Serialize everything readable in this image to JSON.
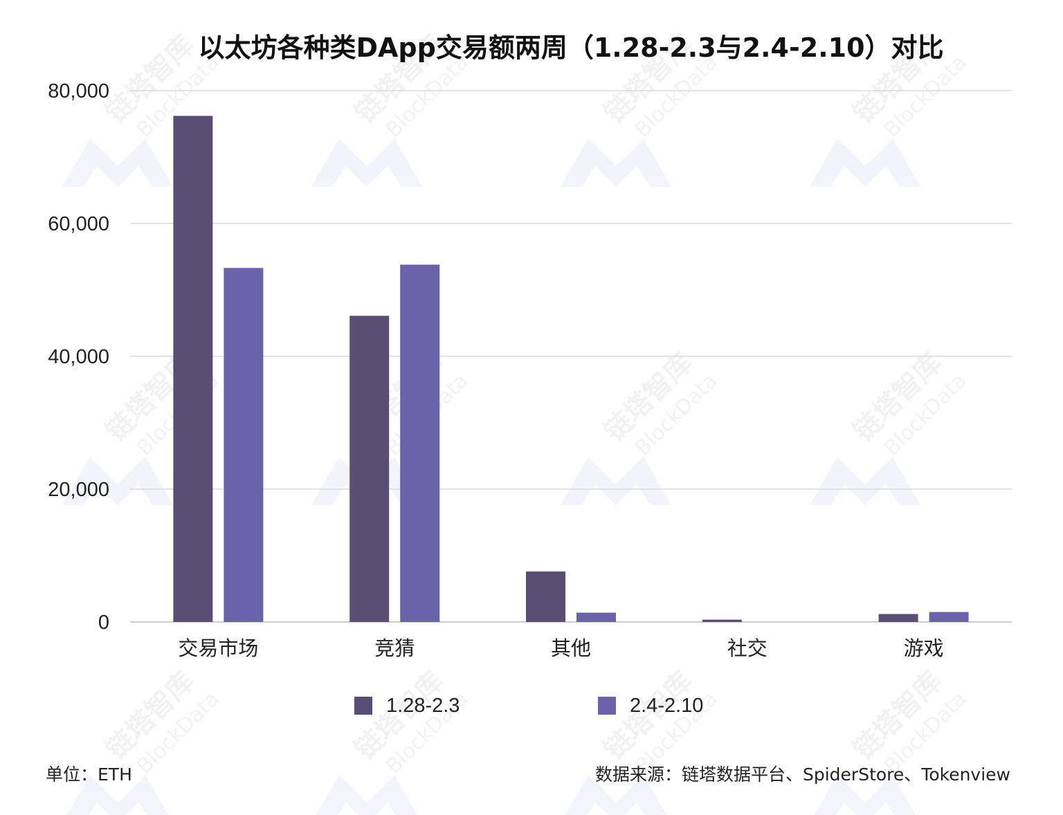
{
  "chart_data": {
    "type": "bar",
    "title": "以太坊各种类DApp交易额两周（1.28-2.3与2.4-2.10）对比",
    "categories": [
      "交易市场",
      "竞猜",
      "其他",
      "社交",
      "游戏"
    ],
    "series": [
      {
        "name": "1.28-2.3",
        "color": "#5b4e74",
        "values": [
          76200,
          46100,
          7600,
          350,
          1200
        ]
      },
      {
        "name": "2.4-2.10",
        "color": "#6a63a9",
        "values": [
          53300,
          53800,
          1400,
          0,
          1500
        ]
      }
    ],
    "ylim": [
      0,
      80000
    ],
    "yticks": [
      0,
      20000,
      40000,
      60000,
      80000
    ],
    "ytick_labels": [
      "0",
      "20,000",
      "40,000",
      "60,000",
      "80,000"
    ],
    "xlabel": "",
    "ylabel": "",
    "grid": true,
    "legend_position": "bottom"
  },
  "footer": {
    "unit": "单位：ETH",
    "source": "数据来源：链塔数据平台、SpiderStore、Tokenview"
  },
  "watermark": {
    "brand_cn": "链塔智库",
    "brand_en": "BlockData"
  }
}
